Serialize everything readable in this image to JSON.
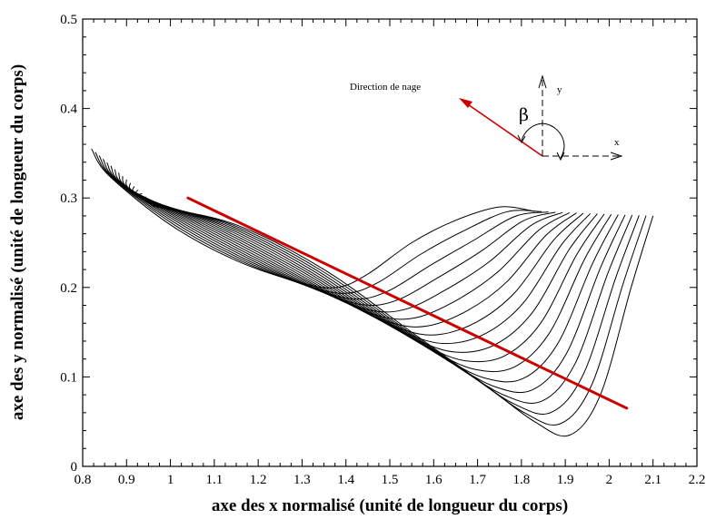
{
  "chart_data": {
    "type": "line",
    "title": "",
    "xlabel": "axe des x normalisé (unité de longueur du corps)",
    "ylabel": "axe des y normalisé (unité de longueur du corps)",
    "xlim": [
      0.8,
      2.2
    ],
    "ylim": [
      0,
      0.5
    ],
    "x_ticks": [
      "0.8",
      "0.9",
      "1",
      "1.1",
      "1.2",
      "1.3",
      "1.4",
      "1.5",
      "1.6",
      "1.7",
      "1.8",
      "1.9",
      "2",
      "2.1",
      "2.2"
    ],
    "y_ticks": [
      "0",
      "0.1",
      "0.2",
      "0.3",
      "0.4",
      "0.5"
    ],
    "grid": false,
    "family": {
      "count": 18,
      "head_start": [
        0.82,
        0.355
      ],
      "head_end": [
        0.97,
        0.29
      ],
      "first_curve": [
        [
          0.86,
          0.325
        ],
        [
          1.0,
          0.27
        ],
        [
          1.15,
          0.23
        ],
        [
          1.3,
          0.205
        ],
        [
          1.38,
          0.2
        ],
        [
          1.45,
          0.215
        ],
        [
          1.55,
          0.25
        ],
        [
          1.65,
          0.275
        ],
        [
          1.75,
          0.29
        ],
        [
          1.83,
          0.285
        ]
      ],
      "last_curve": [
        [
          0.97,
          0.29
        ],
        [
          1.15,
          0.27
        ],
        [
          1.35,
          0.22
        ],
        [
          1.55,
          0.15
        ],
        [
          1.72,
          0.09
        ],
        [
          1.83,
          0.05
        ],
        [
          1.91,
          0.035
        ],
        [
          1.98,
          0.08
        ],
        [
          2.05,
          0.2
        ],
        [
          2.1,
          0.28
        ]
      ],
      "color": "#000000"
    },
    "series": [
      {
        "type": "trend_line",
        "x": [
          1.04,
          2.04
        ],
        "y": [
          0.3,
          0.065
        ],
        "color": "#cc0000"
      }
    ],
    "inset": {
      "label": "Direction de nage",
      "beta_symbol": "β",
      "axis_y_label": "y",
      "axis_x_label": "x",
      "arrow_color": "#cc0000"
    }
  }
}
